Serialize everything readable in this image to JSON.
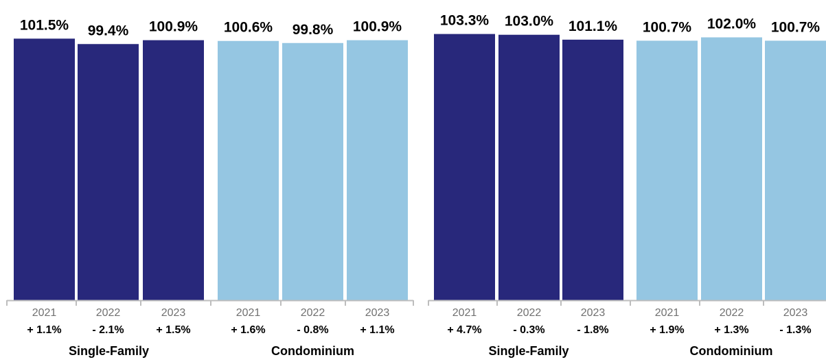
{
  "chart_data": [
    {
      "type": "bar",
      "categories": [
        "2021",
        "2022",
        "2023",
        "2021",
        "2022",
        "2023"
      ],
      "groups": [
        {
          "label": "Single-Family",
          "categories": [
            "2021",
            "2022",
            "2023"
          ]
        },
        {
          "label": "Condominium",
          "categories": [
            "2021",
            "2022",
            "2023"
          ]
        }
      ],
      "values": [
        101.5,
        99.4,
        100.9,
        100.6,
        99.8,
        100.9
      ],
      "value_labels": [
        "101.5%",
        "99.4%",
        "100.9%",
        "100.6%",
        "99.8%",
        "100.9%"
      ],
      "changes": [
        "+ 1.1%",
        "- 2.1%",
        "+ 1.5%",
        "+ 1.6%",
        "- 0.8%",
        "+ 1.1%"
      ],
      "bar_colors": [
        "#28287B",
        "#28287B",
        "#28287B",
        "#95C6E2",
        "#95C6E2",
        "#95C6E2"
      ],
      "title": "",
      "xlabel": "",
      "ylabel": "",
      "ylim": [
        0,
        105
      ]
    },
    {
      "type": "bar",
      "categories": [
        "2021",
        "2022",
        "2023",
        "2021",
        "2022",
        "2023"
      ],
      "groups": [
        {
          "label": "Single-Family",
          "categories": [
            "2021",
            "2022",
            "2023"
          ]
        },
        {
          "label": "Condominium",
          "categories": [
            "2021",
            "2022",
            "2023"
          ]
        }
      ],
      "values": [
        103.3,
        103.0,
        101.1,
        100.7,
        102.0,
        100.7
      ],
      "value_labels": [
        "103.3%",
        "103.0%",
        "101.1%",
        "100.7%",
        "102.0%",
        "100.7%"
      ],
      "changes": [
        "+ 4.7%",
        "- 0.3%",
        "- 1.8%",
        "+ 1.9%",
        "+ 1.3%",
        "- 1.3%"
      ],
      "bar_colors": [
        "#28287B",
        "#28287B",
        "#28287B",
        "#95C6E2",
        "#95C6E2",
        "#95C6E2"
      ],
      "title": "",
      "xlabel": "",
      "ylabel": "",
      "ylim": [
        0,
        105
      ]
    }
  ],
  "colors": {
    "single_family": "#28287B",
    "condominium": "#95C6E2",
    "axis": "#BDBDBD",
    "year_text": "#707070",
    "label_text": "#000000"
  }
}
